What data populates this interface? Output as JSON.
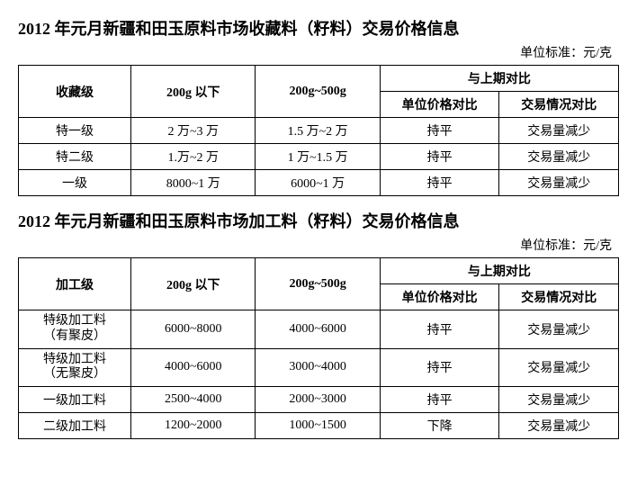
{
  "tables": [
    {
      "title": "2012 年元月新疆和田玉原料市场收藏料（籽料）交易价格信息",
      "unit": "单位标准：元/克",
      "headers": {
        "col1": "收藏级",
        "col2": "200g 以下",
        "col3": "200g~500g",
        "group": "与上期对比",
        "sub1": "单位价格对比",
        "sub2": "交易情况对比"
      },
      "rows": [
        [
          "特一级",
          "2 万~3 万",
          "1.5 万~2 万",
          "持平",
          "交易量减少"
        ],
        [
          "特二级",
          "1.万~2 万",
          "1 万~1.5 万",
          "持平",
          "交易量减少"
        ],
        [
          "一级",
          "8000~1 万",
          "6000~1 万",
          "持平",
          "交易量减少"
        ]
      ]
    },
    {
      "title": "2012 年元月新疆和田玉原料市场加工料（籽料）交易价格信息",
      "unit": "单位标准：元/克",
      "headers": {
        "col1": "加工级",
        "col2": "200g 以下",
        "col3": "200g~500g",
        "group": "与上期对比",
        "sub1": "单位价格对比",
        "sub2": "交易情况对比"
      },
      "rows": [
        [
          "特级加工料\n（有聚皮）",
          "6000~8000",
          "4000~6000",
          "持平",
          "交易量减少"
        ],
        [
          "特级加工料\n（无聚皮）",
          "4000~6000",
          "3000~4000",
          "持平",
          "交易量减少"
        ],
        [
          "一级加工料",
          "2500~4000",
          "2000~3000",
          "持平",
          "交易量减少"
        ],
        [
          "二级加工料",
          "1200~2000",
          "1000~1500",
          "下降",
          "交易量减少"
        ]
      ]
    }
  ],
  "styling": {
    "background_color": "#ffffff",
    "text_color": "#000000",
    "border_color": "#000000",
    "title_fontsize": 18,
    "cell_fontsize": 14,
    "font_family": "SimSun"
  }
}
